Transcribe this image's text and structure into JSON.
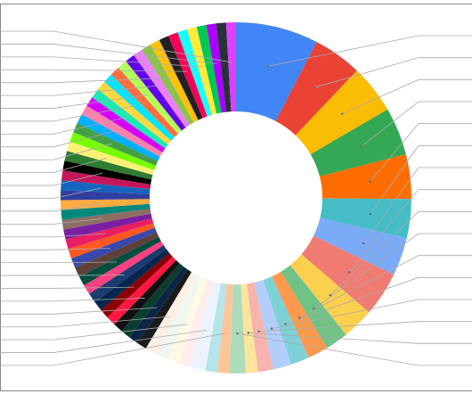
{
  "chart_data": {
    "type": "donut",
    "values": [
      7.6,
      4.5,
      4.5,
      4.4,
      4.1,
      3.6,
      3.5,
      4.1,
      2.9,
      2.1,
      1.9,
      1.7,
      1.7,
      1.4,
      1.1,
      1.5,
      1.1,
      1.1,
      1.4,
      1.1,
      1.1,
      1.1,
      1.1,
      0.9,
      0.9,
      0.9,
      0.9,
      0.9,
      0.9,
      0.9,
      0.9,
      0.9,
      0.9,
      0.9,
      0.9,
      0.9,
      0.9,
      0.9,
      0.9,
      0.9,
      0.9,
      0.9,
      0.9,
      0.9,
      0.9,
      0.9,
      0.9,
      0.9,
      0.9,
      0.9,
      0.9,
      0.9,
      0.9,
      0.9,
      0.9,
      0.9,
      0.9,
      0.9,
      0.9,
      0.9,
      0.9,
      0.9,
      0.9,
      0.9,
      0.9,
      0.9,
      0.9,
      0.9,
      0.9
    ],
    "colors": [
      "#4285f4",
      "#ea4335",
      "#fbbc04",
      "#34a853",
      "#ff6d01",
      "#46bdc6",
      "#7baaf7",
      "#f07b72",
      "#fcd04f",
      "#71c287",
      "#ff994d",
      "#7ed1d7",
      "#b3cefb",
      "#f7b4ae",
      "#fde49b",
      "#aedcba",
      "#ffc599",
      "#b5e5e8",
      "#ecf3fe",
      "#fdeeed",
      "#fff9e6",
      "#eef8f1",
      "#fff0e6",
      "#1a1a1a",
      "#0b2545",
      "#0a3d2e",
      "#111111",
      "#ff1744",
      "#8b0000",
      "#00264d",
      "#1a3c6e",
      "#ff4081",
      "#004d40",
      "#5d4037",
      "#3949ab",
      "#ff5722",
      "#e91e63",
      "#7b1fa2",
      "#8d6e63",
      "#00897b",
      "#ffab40",
      "#303f9f",
      "#1565c0",
      "#c2185b",
      "#000000",
      "#2e7d32",
      "#fff176",
      "#76ff03",
      "#43a047",
      "#00b0ff",
      "#ff80ab",
      "#d500f9",
      "#1de9b6",
      "#ffd740",
      "#00e5ff",
      "#ff6e40",
      "#b2ff59",
      "#6200ea",
      "#ea80fc",
      "#8bc34a",
      "#ffc107",
      "#212121",
      "#f50057",
      "#18ffff",
      "#ffeb3b",
      "#00c853",
      "#aa00ff",
      "#263238",
      "#e040fb"
    ]
  }
}
